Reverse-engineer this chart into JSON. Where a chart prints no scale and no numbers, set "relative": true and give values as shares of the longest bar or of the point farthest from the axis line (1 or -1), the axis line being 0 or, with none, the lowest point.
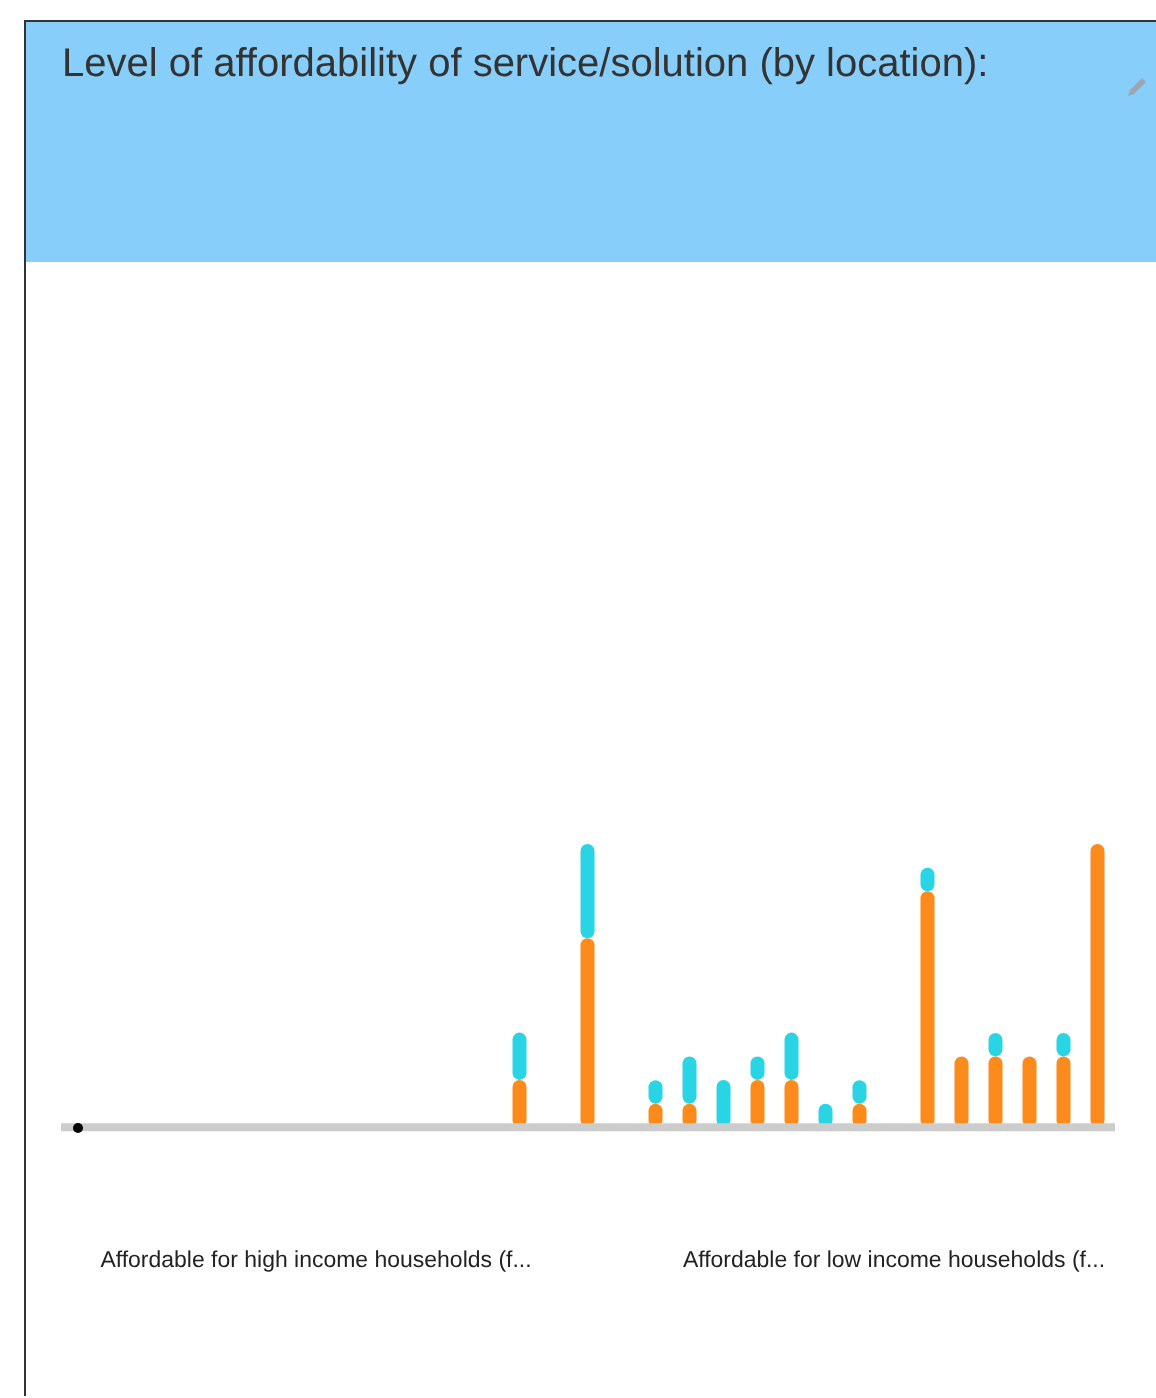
{
  "chart_data": {
    "type": "bar",
    "title": "Level of affordability of service/solution (by location):",
    "relative": true,
    "stacked": true,
    "categories": [
      null,
      null,
      null,
      null,
      null,
      null,
      null,
      "Affordable for high income households (f...",
      null,
      null,
      null,
      null,
      null,
      null,
      null,
      null,
      null,
      null,
      null,
      null,
      null,
      null,
      null,
      null,
      "Affordable for low income households (f...",
      null,
      null,
      null,
      null,
      null,
      null
    ],
    "series": [
      {
        "color": "#fd8b1c",
        "values": [
          null,
          null,
          null,
          null,
          null,
          null,
          null,
          null,
          null,
          null,
          null,
          null,
          null,
          0.167,
          null,
          0.667,
          null,
          0.083,
          0.083,
          null,
          0.167,
          0.167,
          null,
          0.083,
          null,
          0.833,
          0.25,
          0.25,
          0.25,
          0.25,
          1
        ]
      },
      {
        "color": "#29d4e4",
        "values": [
          null,
          null,
          null,
          null,
          null,
          null,
          null,
          null,
          null,
          null,
          null,
          null,
          null,
          0.167,
          null,
          0.333,
          null,
          0.083,
          0.167,
          0.167,
          0.083,
          0.167,
          0.083,
          0.083,
          null,
          0.083,
          null,
          0.083,
          null,
          0.083,
          null
        ]
      }
    ]
  }
}
